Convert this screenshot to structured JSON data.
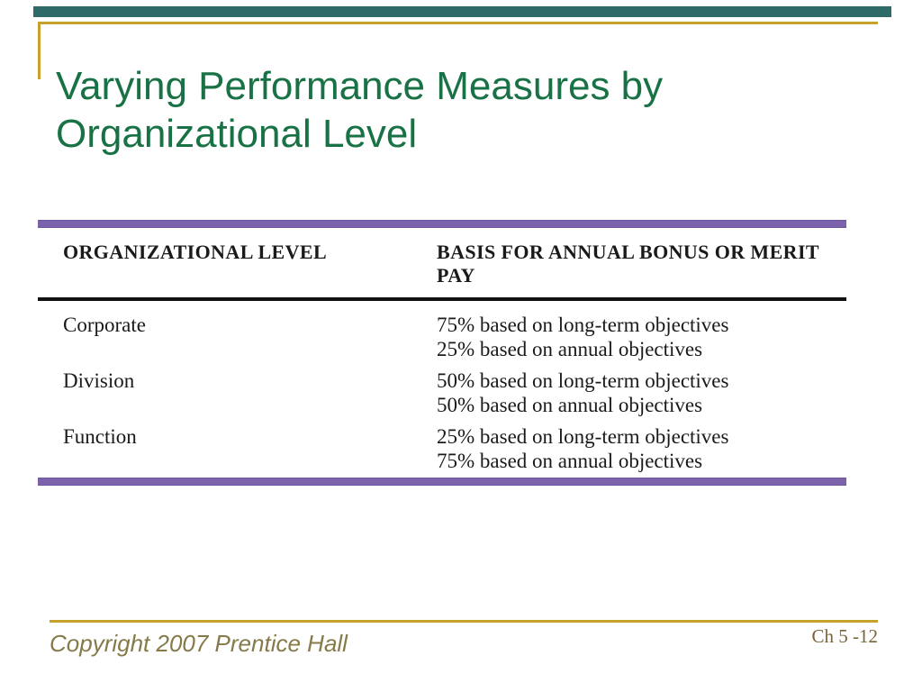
{
  "slide": {
    "title": {
      "line1": "Varying Performance Measures by",
      "line2": "Organizational Level"
    },
    "table": {
      "col1_header": "ORGANIZATIONAL LEVEL",
      "col2_header": "BASIS FOR ANNUAL BONUS OR MERIT PAY",
      "rows": [
        {
          "level": "Corporate",
          "basis1": "75% based on long-term objectives",
          "basis2": "25% based on annual objectives"
        },
        {
          "level": "Division",
          "basis1": "50% based on long-term objectives",
          "basis2": "50% based on annual objectives"
        },
        {
          "level": "Function",
          "basis1": "25% based on long-term objectives",
          "basis2": "75% based on annual objectives"
        }
      ]
    },
    "footer": {
      "copyright": "Copyright 2007 Prentice Hall",
      "page_label": "Ch 5 -12"
    },
    "colors": {
      "title_green": "#187245",
      "accent_teal": "#2e6b68",
      "accent_gold": "#c6a12c",
      "table_purple": "#7b63ac",
      "rule_black": "#111111",
      "footer_text": "#857a48",
      "page_text": "#7a6438"
    }
  }
}
